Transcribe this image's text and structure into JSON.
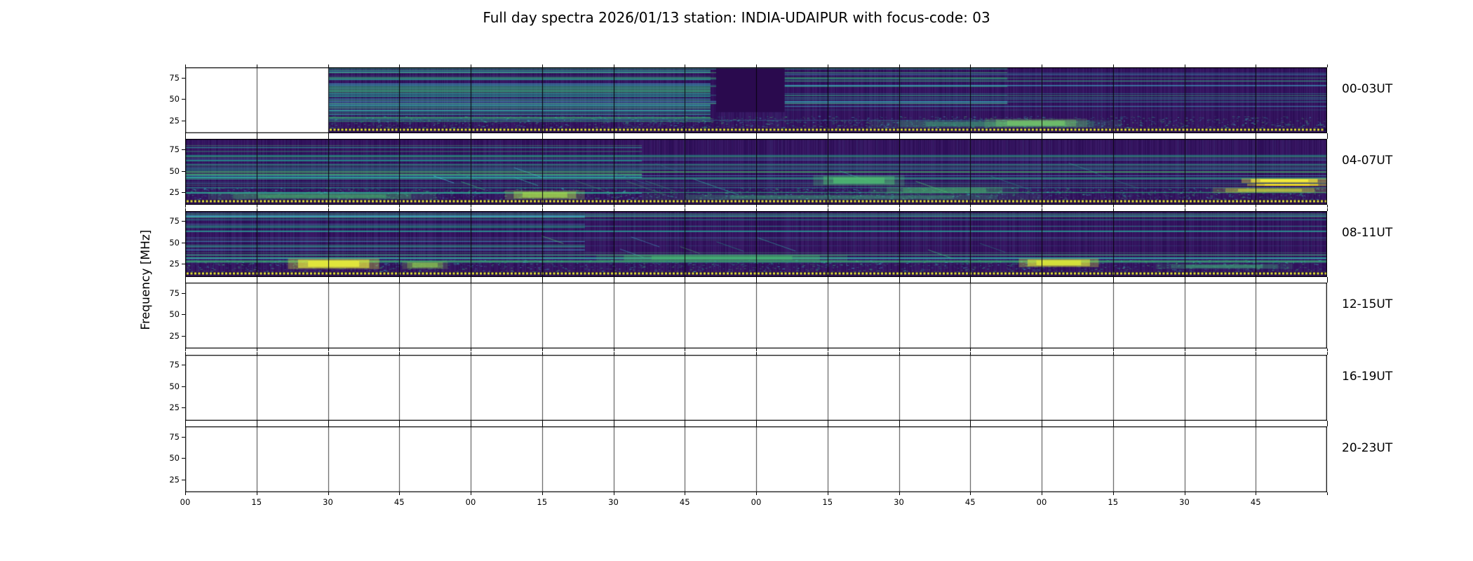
{
  "chart_data": {
    "type": "heatmap",
    "title": "Full day spectra 2026/01/13 station: INDIA-UDAIPUR with focus-code: 03",
    "ylabel": "Frequency [MHz]",
    "xlabel": "",
    "x_tick_labels": [
      "00",
      "15",
      "30",
      "45",
      "00",
      "15",
      "30",
      "45",
      "00",
      "15",
      "30",
      "45",
      "00",
      "15",
      "30",
      "45"
    ],
    "freq_axis": {
      "min": 10,
      "max": 87,
      "ticks": [
        75,
        50,
        25
      ],
      "unit": "MHz"
    },
    "segments_per_row": 16,
    "minutes_per_segment": 15,
    "colormap": "viridis",
    "colors": {
      "base": "#36135f",
      "dark_block": "#2a0a4e",
      "dotted": "#e8e337",
      "line_palette": [
        "#1fa187",
        "#2fb3a3",
        "#35b779",
        "#4ac16d",
        "#31688e",
        "#44c8d9"
      ],
      "panel_border": "#000000",
      "empty_divider": "#444444"
    },
    "rows": [
      {
        "label": "00-03UT",
        "has_data": true,
        "data_from": 0.125,
        "line_sets": [
          {
            "x0": 0.125,
            "x1": 0.46,
            "count": 55
          },
          {
            "x0": 0.125,
            "x1": 0.72,
            "count": 12
          },
          {
            "x0": 0.52,
            "x1": 1.0,
            "count": 14
          }
        ],
        "dark_blocks": [
          {
            "x": 0.465,
            "w": 0.06,
            "y": 0.02,
            "h": 0.66
          }
        ],
        "blobs": [
          {
            "x": 0.6,
            "w": 0.22,
            "y": 0.8,
            "h": 0.12,
            "color": "#3fae7a",
            "alpha": 0.35
          },
          {
            "x": 0.7,
            "w": 0.09,
            "y": 0.78,
            "h": 0.13,
            "color": "#7ed06a",
            "alpha": 0.5
          }
        ]
      },
      {
        "label": "04-07UT",
        "has_data": true,
        "data_from": 0,
        "line_sets": [
          {
            "x0": 0,
            "x1": 1,
            "count": 26
          },
          {
            "x0": 0,
            "x1": 0.4,
            "count": 14
          }
        ],
        "dark_blocks": [],
        "diagonals": {
          "x0": 0.2,
          "x1": 0.8,
          "count": 16
        },
        "blobs": [
          {
            "x": 0.02,
            "w": 0.2,
            "y": 0.82,
            "h": 0.1,
            "color": "#46b26e",
            "alpha": 0.45
          },
          {
            "x": 0.28,
            "w": 0.07,
            "y": 0.78,
            "h": 0.14,
            "color": "#a3d94e",
            "alpha": 0.6
          },
          {
            "x": 0.55,
            "w": 0.08,
            "y": 0.55,
            "h": 0.16,
            "color": "#4fbf73",
            "alpha": 0.65
          },
          {
            "x": 0.6,
            "w": 0.13,
            "y": 0.72,
            "h": 0.12,
            "color": "#46b26e",
            "alpha": 0.4
          },
          {
            "x": 0.4,
            "w": 0.35,
            "y": 0.84,
            "h": 0.09,
            "color": "#3fae7a",
            "alpha": 0.3
          },
          {
            "x": 0.925,
            "w": 0.075,
            "y": 0.6,
            "h": 0.07,
            "color": "#f2ea3a",
            "alpha": 0.95
          },
          {
            "x": 0.93,
            "w": 0.07,
            "y": 0.68,
            "h": 0.035,
            "color": "#fde725",
            "alpha": 0.95
          },
          {
            "x": 0.9,
            "w": 0.1,
            "y": 0.74,
            "h": 0.08,
            "color": "#cfe23c",
            "alpha": 0.5
          }
        ]
      },
      {
        "label": "08-11UT",
        "has_data": true,
        "data_from": 0,
        "line_sets": [
          {
            "x0": 0,
            "x1": 1,
            "count": 24
          },
          {
            "x0": 0,
            "x1": 0.35,
            "count": 16
          }
        ],
        "dark_blocks": [],
        "diagonals": {
          "x0": 0.3,
          "x1": 0.7,
          "count": 8
        },
        "blobs": [
          {
            "x": 0.09,
            "w": 0.08,
            "y": 0.72,
            "h": 0.16,
            "color": "#e3e83c",
            "alpha": 0.85
          },
          {
            "x": 0.19,
            "w": 0.04,
            "y": 0.76,
            "h": 0.12,
            "color": "#8fd44f",
            "alpha": 0.5
          },
          {
            "x": 0.36,
            "w": 0.22,
            "y": 0.66,
            "h": 0.1,
            "color": "#49b86e",
            "alpha": 0.5
          },
          {
            "x": 0.73,
            "w": 0.07,
            "y": 0.72,
            "h": 0.13,
            "color": "#d8e53a",
            "alpha": 0.8
          },
          {
            "x": 0.85,
            "w": 0.12,
            "y": 0.8,
            "h": 0.08,
            "color": "#3fae7a",
            "alpha": 0.4
          }
        ]
      },
      {
        "label": "12-15UT",
        "has_data": false
      },
      {
        "label": "16-19UT",
        "has_data": false
      },
      {
        "label": "20-23UT",
        "has_data": false
      }
    ]
  }
}
